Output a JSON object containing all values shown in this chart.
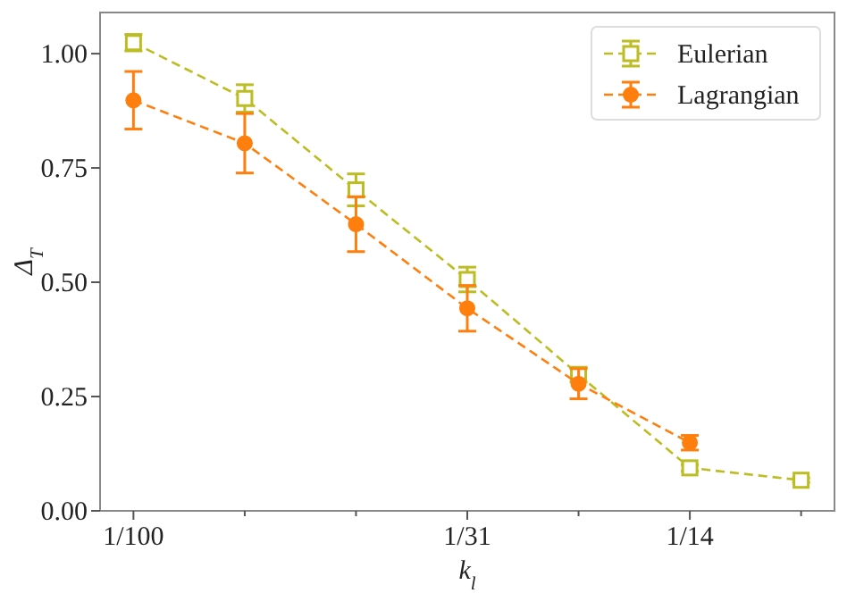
{
  "chart_data": {
    "type": "line",
    "xlabel": "k$_{l}$",
    "ylabel": "Δ$_{T}$",
    "ylim": [
      0,
      1.09
    ],
    "categories": [
      "1/100",
      null,
      null,
      "1/31",
      null,
      "1/14",
      null
    ],
    "yticks": [
      {
        "value": 0,
        "label": "0.00"
      },
      {
        "value": 0.25,
        "label": "0.25"
      },
      {
        "value": 0.5,
        "label": "0.50"
      },
      {
        "value": 0.75,
        "label": "0.75"
      },
      {
        "value": 1,
        "label": "1.00"
      }
    ],
    "legend": "top right",
    "line_style": "dashed",
    "series": [
      {
        "name": "Eulerian",
        "color": "#bcbd22",
        "marker": "square",
        "values": [
          1.024,
          0.902,
          0.702,
          0.506,
          0.298,
          0.094,
          0.067
        ],
        "errors": [
          0.018,
          0.03,
          0.035,
          0.027,
          0.016,
          0.007,
          0.005
        ]
      },
      {
        "name": "Lagrangian",
        "color": "#ff7f0e",
        "marker": "circle",
        "values": [
          0.898,
          0.804,
          0.627,
          0.443,
          0.278,
          0.149,
          null
        ],
        "errors": [
          0.063,
          0.065,
          0.06,
          0.05,
          0.033,
          0.016,
          null
        ]
      }
    ]
  }
}
